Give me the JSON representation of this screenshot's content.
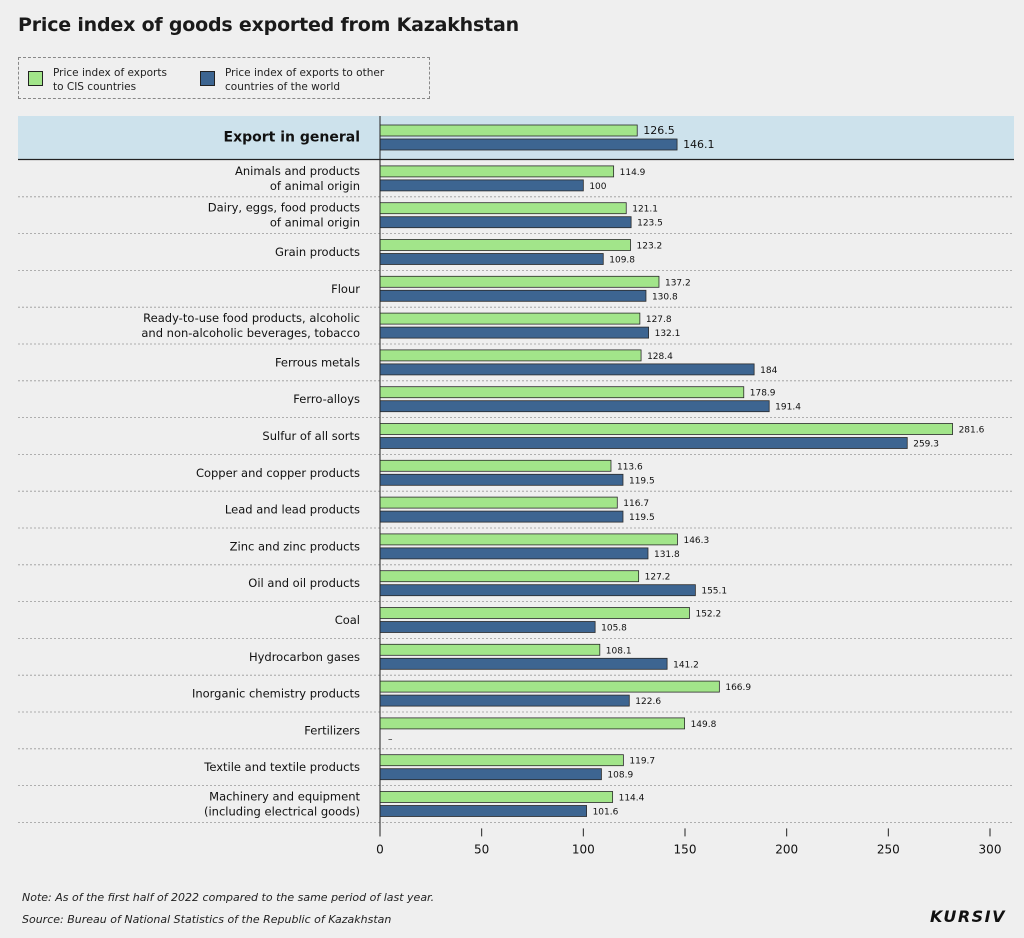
{
  "title": "Price index of goods exported from Kazakhstan",
  "legend": [
    {
      "label": "Price index of exports\nto CIS countries",
      "color": "#a2e58a"
    },
    {
      "label": "Price index of exports to other\ncountries of the world",
      "color": "#3d6591"
    }
  ],
  "note": "Note: As of the first half of 2022 compared to the same period of last year.",
  "source": "Source: Bureau of National Statistics of the Republic of Kazakhstan",
  "brand": "KURSIV",
  "chart_data": {
    "type": "bar",
    "orientation": "horizontal",
    "title": "Price index of goods exported from Kazakhstan",
    "categories": [
      "Export in general",
      "Animals and products\nof animal origin",
      "Dairy, eggs, food products\nof animal origin",
      "Grain products",
      "Flour",
      "Ready-to-use food products, alcoholic\nand non-alcoholic beverages, tobacco",
      "Ferrous metals",
      "Ferro-alloys",
      "Sulfur of all sorts",
      "Copper and copper products",
      "Lead and lead products",
      "Zinc and zinc products",
      "Oil and oil products",
      "Coal",
      "Hydrocarbon gases",
      "Inorganic chemistry products",
      "Fertilizers",
      "Textile and textile products",
      "Machinery and equipment\n(including electrical goods)"
    ],
    "series": [
      {
        "name": "Price index of exports to CIS countries",
        "color": "#a2e58a",
        "values": [
          126.5,
          114.9,
          121.1,
          123.2,
          137.2,
          127.8,
          128.4,
          178.9,
          281.6,
          113.6,
          116.7,
          146.3,
          127.2,
          152.2,
          108.1,
          166.9,
          149.8,
          119.7,
          114.4
        ],
        "labels": [
          "126.5",
          "114.9",
          "121.1",
          "123.2",
          "137.2",
          "127.8",
          "128.4",
          "178.9",
          "281.6",
          "113.6",
          "116.7",
          "146.3",
          "127.2",
          "152.2",
          "108.1",
          "166.9",
          "149.8",
          "119.7",
          "114.4"
        ]
      },
      {
        "name": "Price index of exports to other countries of the world",
        "color": "#3d6591",
        "values": [
          146.1,
          100,
          123.5,
          109.8,
          130.8,
          132.1,
          184,
          191.4,
          259.3,
          119.5,
          119.5,
          131.8,
          155.1,
          105.8,
          141.2,
          122.6,
          null,
          108.9,
          101.6
        ],
        "labels": [
          "146.1",
          "100",
          "123.5",
          "109.8",
          "130.8",
          "132.1",
          "184",
          "191.4",
          "259.3",
          "119.5",
          "119.5",
          "131.8",
          "155.1",
          "105.8",
          "141.2",
          "122.6",
          "–",
          "108.9",
          "101.6"
        ]
      }
    ],
    "xlim": [
      0,
      300
    ],
    "xticks": [
      0,
      50,
      100,
      150,
      200,
      250,
      300
    ],
    "highlight_first_row": true,
    "highlight_color": "#cde2ec",
    "grid": false,
    "legend_position": "top-left"
  }
}
